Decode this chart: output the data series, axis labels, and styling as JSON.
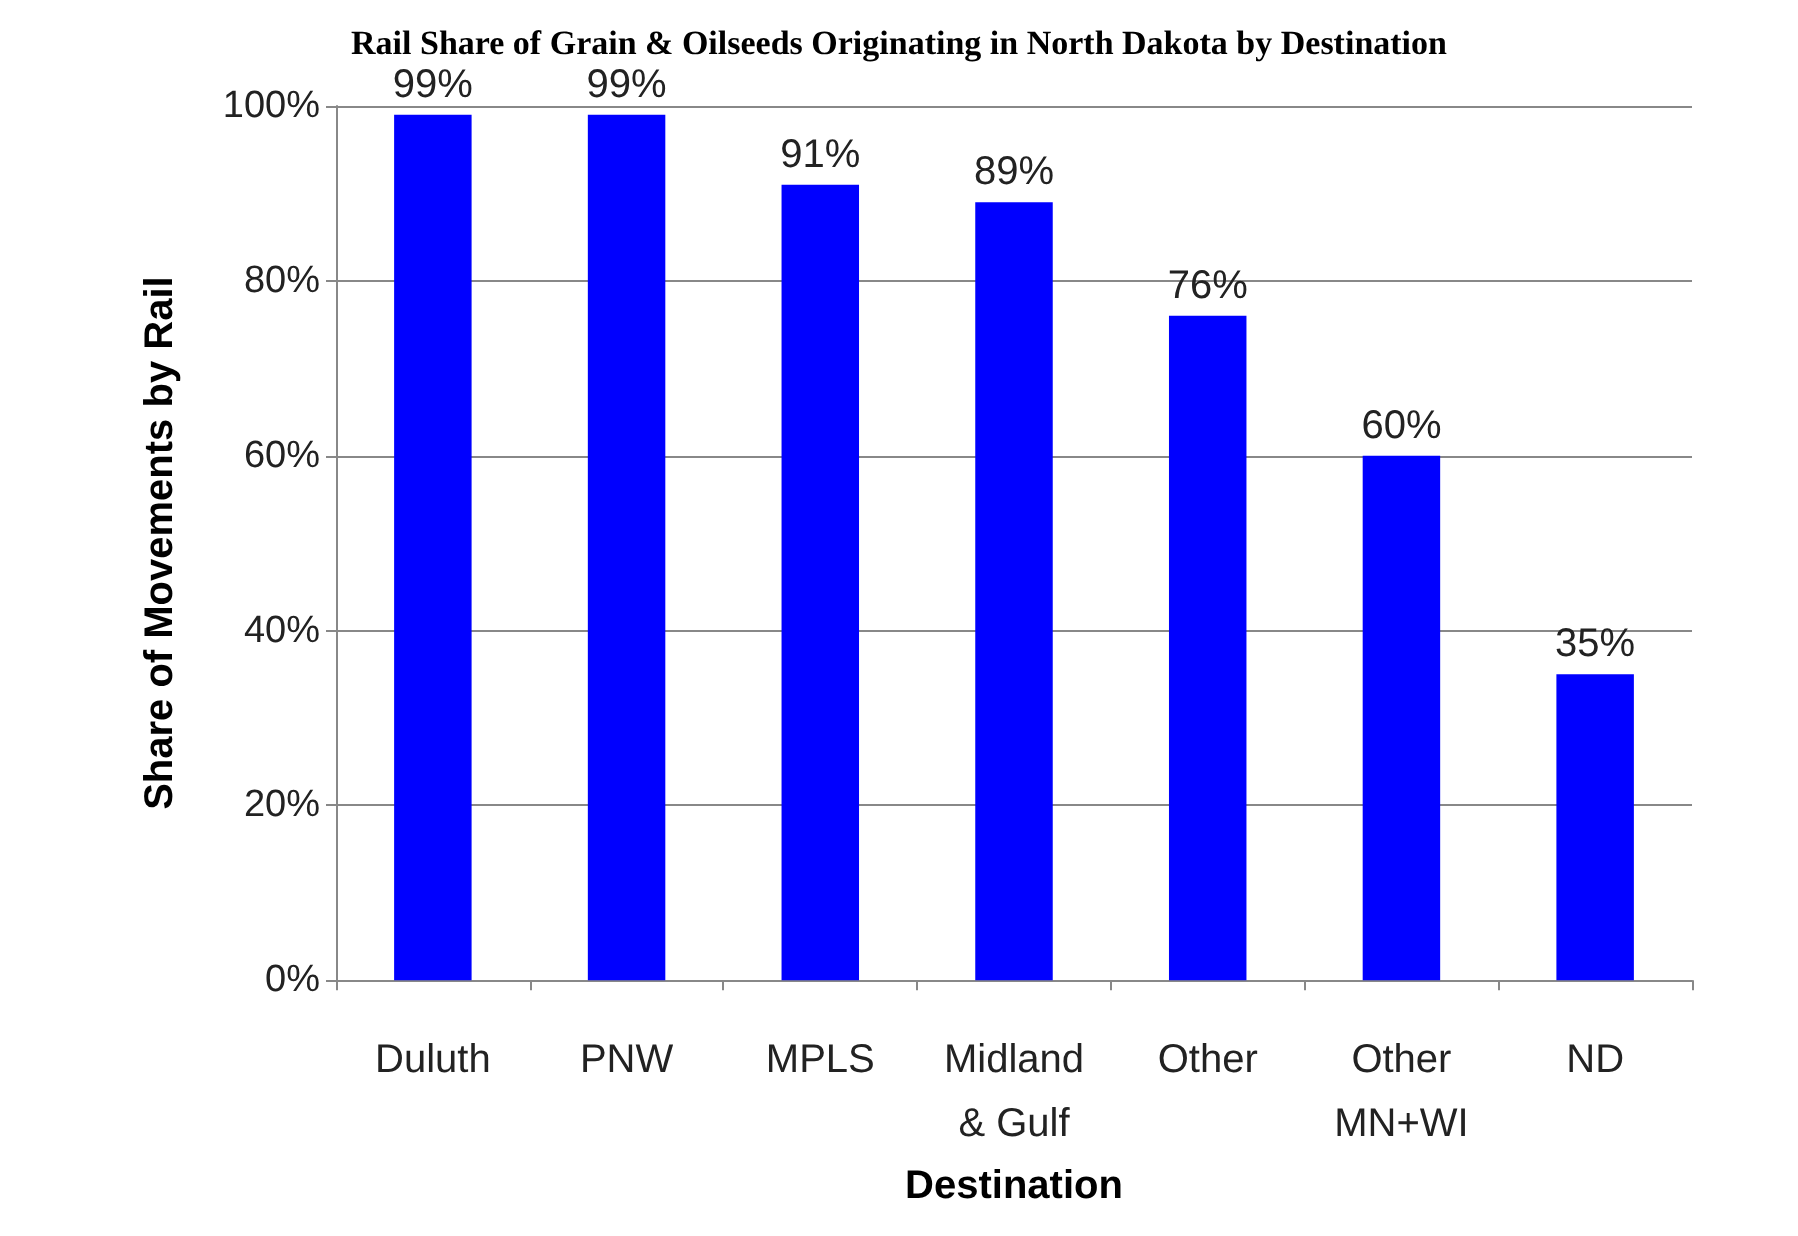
{
  "chart_data": {
    "type": "bar",
    "title": "Rail Share of Grain & Oilseeds Originating in North Dakota by Destination",
    "xlabel": "Destination",
    "ylabel": "Share of Movements by Rail",
    "categories": [
      "Duluth",
      "PNW",
      "MPLS",
      "Midland\n& Gulf",
      "Other",
      "Other\nMN+WI",
      "ND"
    ],
    "values": [
      99,
      99,
      91,
      89,
      76,
      60,
      35
    ],
    "color": "#0000ff",
    "value_labels": [
      "99%",
      "99%",
      "91%",
      "89%",
      "76%",
      "60%",
      "35%"
    ],
    "ylim": [
      0,
      100
    ],
    "yticks": [
      {
        "value": 0,
        "label": "0%"
      },
      {
        "value": 20,
        "label": "20%"
      },
      {
        "value": 40,
        "label": "40%"
      },
      {
        "value": 60,
        "label": "60%"
      },
      {
        "value": 80,
        "label": "80%"
      },
      {
        "value": 100,
        "label": "100%"
      }
    ],
    "grid": "y"
  }
}
